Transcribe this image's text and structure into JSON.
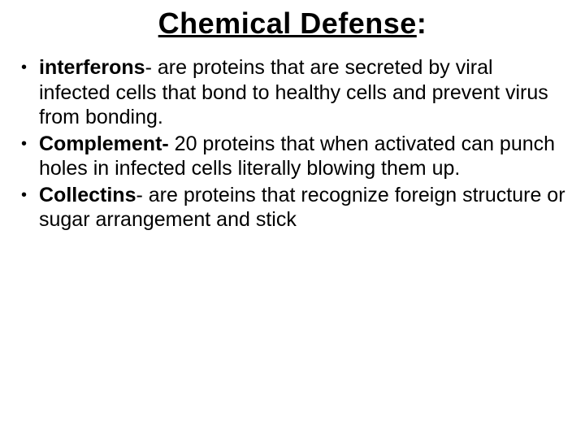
{
  "title_underlined": "Chemical Defense",
  "title_colon": ":",
  "bullets": [
    {
      "term": "interferons",
      "text": "- are proteins that are secreted by viral infected cells that bond to healthy cells and prevent virus from bonding."
    },
    {
      "term": "Complement-",
      "text": "  20 proteins that when activated can punch holes in infected cells literally blowing them up."
    },
    {
      "term": "Collectins",
      "text": "- are proteins that recognize foreign structure or sugar arrangement and stick"
    }
  ],
  "colors": {
    "background": "#ffffff",
    "text": "#000000"
  },
  "typography": {
    "title_fontsize": 36,
    "body_fontsize": 25,
    "font_family": "Arial"
  }
}
